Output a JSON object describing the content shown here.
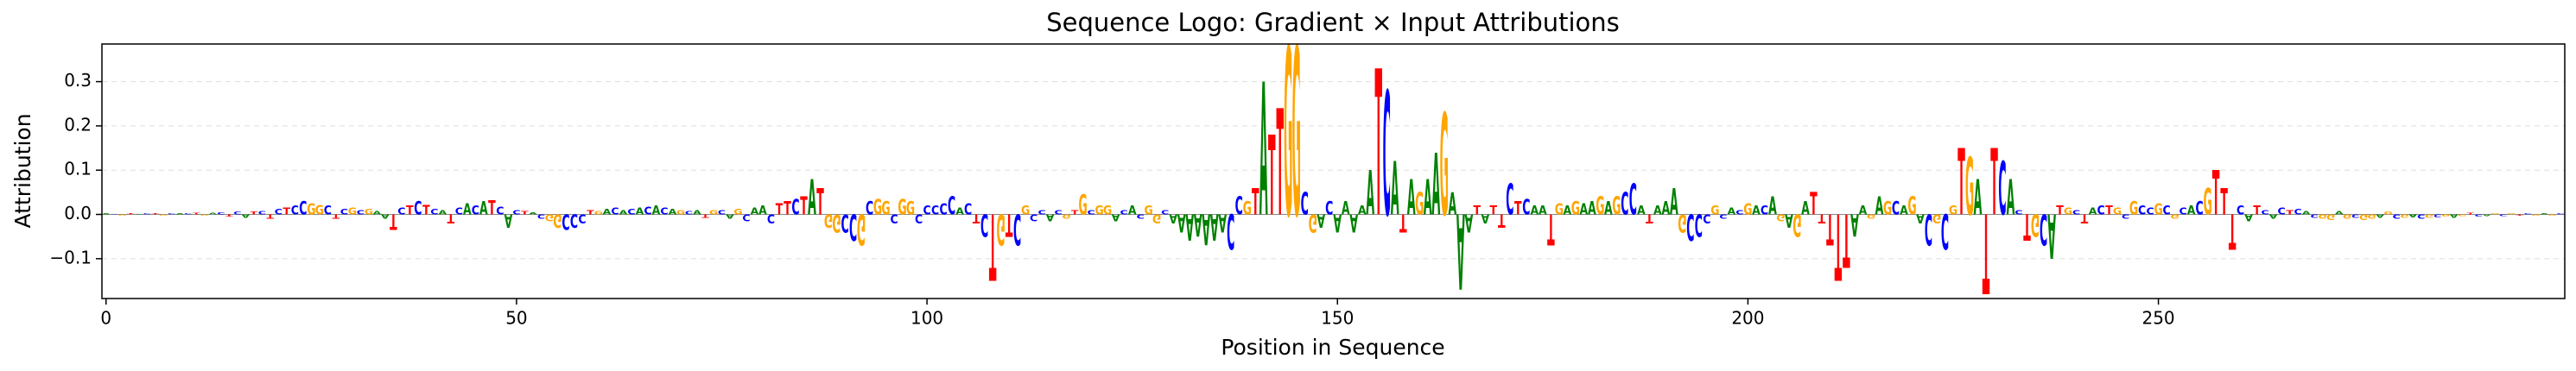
{
  "chart_data": {
    "type": "logo",
    "title": "Sequence Logo: Gradient × Input Attributions",
    "x_label": "Position in Sequence",
    "y_label": "Attribution",
    "xlim": [
      -0.5,
      299.5
    ],
    "xticks": [
      0,
      50,
      100,
      150,
      200,
      250
    ],
    "ylim": [
      -0.19,
      0.385
    ],
    "yticks": [
      {
        "value": -0.1,
        "label": "−0.1"
      },
      {
        "value": 0,
        "label": "0.0"
      },
      0.1,
      0.2,
      0.3
    ],
    "grid": true,
    "colors": {
      "A": "#008000",
      "C": "#0000ff",
      "G": "#ffa500",
      "T": "#ff0000"
    },
    "sequence": [
      "A",
      "C",
      "G",
      "T",
      "A",
      "C",
      "T",
      "G",
      "C",
      "A",
      "C",
      "T",
      "G",
      "A",
      "C",
      "T",
      "C",
      "A",
      "T",
      "C",
      "T",
      "C",
      "T",
      "C",
      "C",
      "G",
      "G",
      "C",
      "T",
      "C",
      "G",
      "C",
      "G",
      "A",
      "A",
      "T",
      "C",
      "T",
      "C",
      "T",
      "C",
      "A",
      "T",
      "C",
      "A",
      "C",
      "A",
      "T",
      "C",
      "A",
      "C",
      "T",
      "A",
      "C",
      "G",
      "G",
      "C",
      "C",
      "C",
      "T",
      "G",
      "A",
      "C",
      "A",
      "C",
      "A",
      "C",
      "A",
      "C",
      "A",
      "G",
      "C",
      "A",
      "T",
      "G",
      "C",
      "A",
      "G",
      "C",
      "A",
      "A",
      "C",
      "T",
      "T",
      "C",
      "T",
      "A",
      "T",
      "G",
      "G",
      "C",
      "C",
      "G",
      "C",
      "G",
      "G",
      "C",
      "G",
      "G",
      "C",
      "C",
      "C",
      "C",
      "C",
      "A",
      "C",
      "T",
      "C",
      "T",
      "G",
      "T",
      "C",
      "G",
      "C",
      "C",
      "A",
      "C",
      "G",
      "T",
      "G",
      "C",
      "G",
      "G",
      "A",
      "C",
      "A",
      "C",
      "G",
      "G",
      "C",
      "A",
      "A",
      "A",
      "A",
      "A",
      "A",
      "A",
      "C",
      "C",
      "G",
      "T",
      "A",
      "T",
      "T",
      "G",
      "G",
      "C",
      "G",
      "A",
      "C",
      "A",
      "A",
      "A",
      "A",
      "A",
      "T",
      "C",
      "A",
      "T",
      "A",
      "G",
      "A",
      "A",
      "G",
      "A",
      "A",
      "A",
      "T",
      "A",
      "T",
      "T",
      "C",
      "T",
      "C",
      "A",
      "A",
      "T",
      "G",
      "A",
      "G",
      "A",
      "A",
      "G",
      "A",
      "G",
      "C",
      "C",
      "A",
      "T",
      "A",
      "A",
      "A",
      "G",
      "C",
      "C",
      "C",
      "G",
      "C",
      "A",
      "C",
      "G",
      "A",
      "C",
      "A",
      "G",
      "A",
      "G",
      "A",
      "T",
      "T",
      "T",
      "T",
      "T",
      "A",
      "A",
      "G",
      "A",
      "G",
      "C",
      "A",
      "G",
      "A",
      "C",
      "G",
      "C",
      "G",
      "T",
      "G",
      "A",
      "T",
      "T",
      "C",
      "A",
      "C",
      "T",
      "G",
      "C",
      "A",
      "T",
      "G",
      "C",
      "T",
      "A",
      "C",
      "T",
      "G",
      "C",
      "G",
      "C",
      "C",
      "G",
      "C",
      "G",
      "C",
      "A",
      "C",
      "G",
      "T",
      "T",
      "T",
      "C",
      "A",
      "T",
      "C",
      "A",
      "C",
      "T",
      "C",
      "A",
      "C",
      "G",
      "G",
      "A",
      "G",
      "C",
      "G",
      "G",
      "A",
      "G",
      "C",
      "G",
      "A",
      "C",
      "G",
      "C",
      "G",
      "A",
      "G",
      "T",
      "C",
      "A",
      "G",
      "C",
      "G",
      "T",
      "C",
      "G",
      "A",
      "G",
      "C"
    ],
    "values": [
      0.002,
      0.001,
      -0.002,
      0.002,
      0.001,
      0.003,
      0.002,
      -0.002,
      0.003,
      0.002,
      0.003,
      0.004,
      -0.003,
      0.004,
      0.005,
      -0.005,
      0.006,
      -0.008,
      0.006,
      0.008,
      -0.01,
      0.012,
      0.015,
      0.02,
      0.03,
      0.025,
      0.022,
      0.02,
      -0.01,
      0.012,
      0.015,
      0.01,
      0.012,
      0.008,
      -0.01,
      -0.035,
      0.015,
      0.02,
      0.03,
      0.022,
      0.012,
      0.01,
      -0.02,
      0.015,
      0.025,
      0.02,
      0.03,
      0.032,
      0.018,
      -0.03,
      0.01,
      0.008,
      0.005,
      -0.01,
      -0.015,
      -0.03,
      -0.035,
      -0.03,
      -0.02,
      0.01,
      0.008,
      0.012,
      0.015,
      0.01,
      0.012,
      0.015,
      0.018,
      0.02,
      0.015,
      0.012,
      0.01,
      0.008,
      0.01,
      -0.008,
      0.01,
      0.01,
      -0.01,
      0.012,
      -0.015,
      0.015,
      0.02,
      -0.02,
      0.025,
      0.03,
      0.035,
      0.04,
      0.08,
      0.06,
      -0.03,
      -0.04,
      -0.04,
      -0.06,
      -0.07,
      0.03,
      0.035,
      0.03,
      -0.02,
      0.035,
      0.03,
      -0.02,
      0.02,
      0.02,
      0.025,
      0.04,
      0.015,
      0.025,
      -0.02,
      -0.05,
      -0.15,
      -0.07,
      -0.05,
      -0.07,
      0.02,
      -0.015,
      0.01,
      -0.015,
      0.01,
      -0.01,
      0.01,
      0.045,
      0.01,
      0.02,
      0.02,
      -0.015,
      0.01,
      0.02,
      -0.01,
      0.02,
      -0.02,
      0.01,
      -0.02,
      -0.04,
      -0.06,
      -0.05,
      -0.07,
      -0.06,
      -0.04,
      -0.08,
      0.04,
      0.03,
      0.06,
      0.3,
      0.18,
      0.24,
      0.38,
      0.38,
      0.05,
      -0.04,
      -0.03,
      0.03,
      -0.04,
      0.03,
      -0.04,
      0.02,
      0.1,
      0.33,
      0.28,
      0.12,
      -0.04,
      0.08,
      0.05,
      0.08,
      0.14,
      0.23,
      0.05,
      -0.17,
      -0.04,
      0.02,
      -0.02,
      0.02,
      -0.03,
      0.07,
      0.03,
      0.035,
      0.02,
      0.02,
      -0.07,
      0.025,
      0.02,
      0.03,
      0.025,
      0.03,
      0.04,
      0.03,
      0.04,
      0.05,
      0.07,
      0.02,
      -0.02,
      0.02,
      0.03,
      0.06,
      -0.04,
      -0.06,
      -0.05,
      -0.02,
      0.02,
      -0.01,
      0.015,
      0.01,
      0.025,
      0.02,
      0.02,
      0.04,
      -0.015,
      -0.03,
      -0.05,
      0.03,
      0.05,
      -0.02,
      -0.07,
      -0.15,
      -0.12,
      -0.05,
      0.02,
      -0.01,
      0.04,
      0.03,
      0.03,
      0.02,
      0.04,
      -0.02,
      -0.07,
      -0.02,
      -0.08,
      0.02,
      0.15,
      0.13,
      0.08,
      -0.18,
      0.15,
      0.12,
      0.08,
      0.01,
      -0.06,
      -0.05,
      -0.07,
      -0.1,
      0.02,
      0.015,
      0.01,
      -0.02,
      0.015,
      0.02,
      0.02,
      0.015,
      -0.01,
      0.03,
      0.02,
      0.015,
      0.025,
      0.02,
      -0.01,
      0.015,
      0.02,
      0.03,
      0.06,
      0.1,
      0.06,
      -0.08,
      0.02,
      -0.015,
      0.02,
      0.01,
      -0.01,
      0.015,
      0.01,
      0.012,
      0.008,
      -0.008,
      -0.01,
      -0.012,
      0.008,
      -0.01,
      -0.008,
      -0.012,
      -0.01,
      -0.008,
      0.006,
      -0.01,
      -0.008,
      -0.006,
      -0.01,
      -0.008,
      -0.006,
      -0.005,
      -0.008,
      -0.004,
      0.004,
      -0.005,
      -0.004,
      0.003,
      -0.004,
      0.003,
      -0.003,
      0.002,
      -0.003,
      0.002,
      -0.002,
      0.002
    ]
  }
}
